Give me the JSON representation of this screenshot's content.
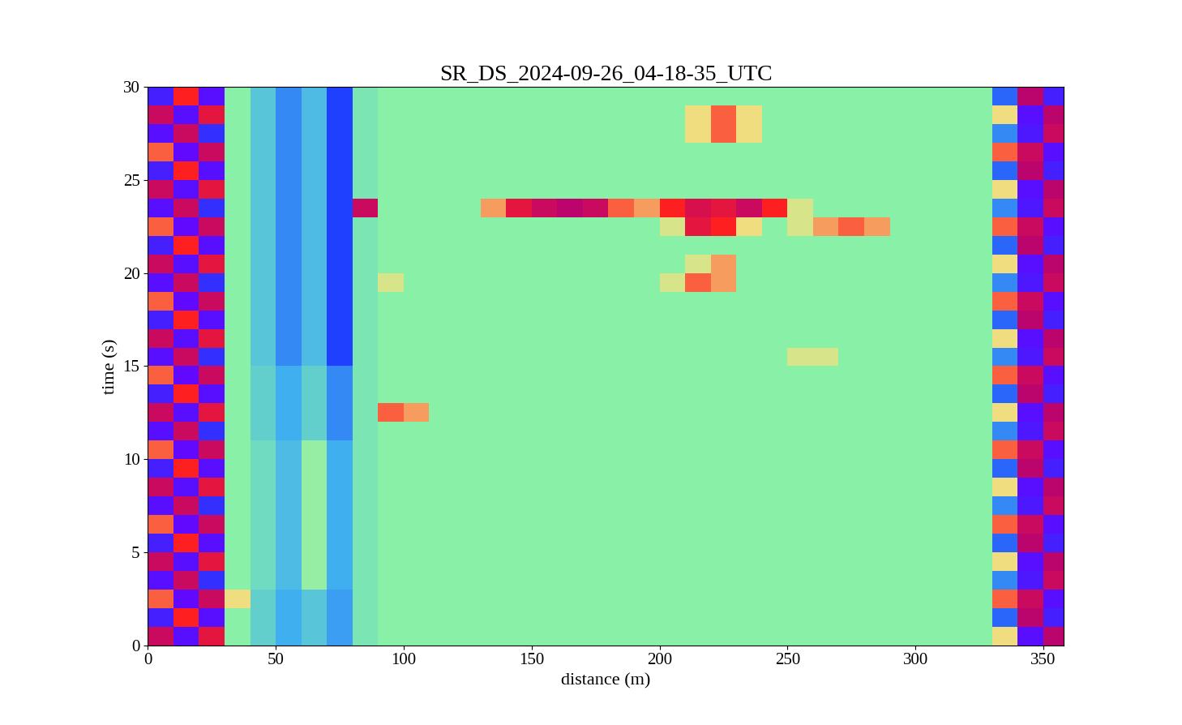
{
  "chart_data": {
    "type": "heatmap",
    "title": "SR_DS_2024-09-26_04-18-35_UTC",
    "x_label": "distance (m)",
    "y_label": "time (s)",
    "xlim": [
      0,
      358
    ],
    "ylim": [
      0,
      30
    ],
    "xticks": [
      0,
      50,
      100,
      150,
      200,
      250,
      300,
      350
    ],
    "yticks": [
      0,
      5,
      10,
      15,
      20,
      25,
      30
    ],
    "color_range": [
      -1,
      1
    ],
    "x_edges": [
      0,
      10,
      20,
      30,
      40,
      50,
      60,
      70,
      80,
      90,
      100,
      110,
      120,
      130,
      140,
      150,
      160,
      170,
      180,
      190,
      200,
      210,
      220,
      230,
      240,
      250,
      260,
      270,
      280,
      290,
      300,
      310,
      320,
      330,
      340,
      350,
      360
    ],
    "y_edges": [
      0,
      1,
      2,
      3,
      4,
      5,
      6,
      7,
      8,
      9,
      10,
      11,
      12,
      13,
      14,
      15,
      16,
      17,
      18,
      19,
      20,
      21,
      22,
      23,
      24,
      25,
      26,
      27,
      28,
      29,
      30
    ],
    "cells": [
      [
        0.9,
        -0.9,
        0.8,
        0,
        -0.15,
        -0.3,
        -0.2,
        -0.35,
        -0.05,
        0,
        0,
        0,
        0,
        0,
        0,
        0,
        0,
        0,
        0,
        0,
        0,
        0,
        0,
        0,
        0,
        0,
        0,
        0,
        0,
        0,
        0,
        0,
        0,
        0.4,
        -0.9,
        0.95
      ],
      [
        -0.8,
        0.7,
        -0.9,
        0,
        -0.15,
        -0.3,
        -0.2,
        -0.35,
        -0.05,
        0,
        0,
        0,
        0,
        0,
        0,
        0,
        0,
        0,
        0,
        0,
        0,
        0,
        0,
        0,
        0,
        0,
        0,
        0,
        0,
        0,
        0,
        0,
        0,
        -0.5,
        0.95,
        -0.8
      ],
      [
        0.6,
        -0.95,
        0.9,
        0.4,
        -0.15,
        -0.3,
        -0.2,
        -0.35,
        -0.05,
        0,
        0,
        0,
        0,
        0,
        0,
        0,
        0,
        0,
        0,
        0,
        0,
        0,
        0,
        0,
        0,
        0,
        0,
        0,
        0,
        0,
        0,
        0,
        0,
        0.6,
        0.9,
        -0.9
      ],
      [
        -0.9,
        0.9,
        -0.7,
        0,
        -0.1,
        -0.25,
        0.05,
        -0.3,
        -0.05,
        0,
        0,
        0,
        0,
        0,
        0,
        0,
        0,
        0,
        0,
        0,
        0,
        0,
        0,
        0,
        0,
        0,
        0,
        0,
        0,
        0,
        0,
        0,
        0,
        -0.4,
        -0.85,
        0.9
      ],
      [
        0.9,
        -0.9,
        0.8,
        0,
        -0.1,
        -0.25,
        0.05,
        -0.3,
        -0.05,
        0,
        0,
        0,
        0,
        0,
        0,
        0,
        0,
        0,
        0,
        0,
        0,
        0,
        0,
        0,
        0,
        0,
        0,
        0,
        0,
        0,
        0,
        0,
        0,
        0.4,
        -0.9,
        0.95
      ],
      [
        -0.8,
        0.7,
        -0.9,
        0,
        -0.1,
        -0.25,
        0.05,
        -0.3,
        -0.05,
        0,
        0,
        0,
        0,
        0,
        0,
        0,
        0,
        0,
        0,
        0,
        0,
        0,
        0,
        0,
        0,
        0,
        0,
        0,
        0,
        0,
        0,
        0,
        0,
        -0.5,
        0.95,
        -0.8
      ],
      [
        0.6,
        -0.95,
        0.9,
        0,
        -0.1,
        -0.25,
        0.05,
        -0.3,
        -0.05,
        0,
        0,
        0,
        0,
        0,
        0,
        0,
        0,
        0,
        0,
        0,
        0,
        0,
        0,
        0,
        0,
        0,
        0,
        0,
        0,
        0,
        0,
        0,
        0,
        0.6,
        0.9,
        -0.9
      ],
      [
        -0.9,
        0.9,
        -0.7,
        0,
        -0.1,
        -0.25,
        0.05,
        -0.3,
        -0.05,
        0,
        0,
        0,
        0,
        0,
        0,
        0,
        0,
        0,
        0,
        0,
        0,
        0,
        0,
        0,
        0,
        0,
        0,
        0,
        0,
        0,
        0,
        0,
        0,
        -0.4,
        -0.85,
        0.9
      ],
      [
        0.9,
        -0.9,
        0.8,
        0,
        -0.1,
        -0.25,
        0.05,
        -0.3,
        -0.05,
        0,
        0,
        0,
        0,
        0,
        0,
        0,
        0,
        0,
        0,
        0,
        0,
        0,
        0,
        0,
        0,
        0,
        0,
        0,
        0,
        0,
        0,
        0,
        0,
        0.4,
        -0.9,
        0.95
      ],
      [
        -0.8,
        0.7,
        -0.9,
        0,
        -0.1,
        -0.25,
        0.05,
        -0.3,
        -0.05,
        0,
        0,
        0,
        0,
        0,
        0,
        0,
        0,
        0,
        0,
        0,
        0,
        0,
        0,
        0,
        0,
        0,
        0,
        0,
        0,
        0,
        0,
        0,
        0,
        -0.5,
        0.95,
        -0.8
      ],
      [
        0.6,
        -0.95,
        0.9,
        0,
        -0.1,
        -0.25,
        0.05,
        -0.3,
        -0.05,
        0,
        0,
        0,
        0,
        0,
        0,
        0,
        0,
        0,
        0,
        0,
        0,
        0,
        0,
        0,
        0,
        0,
        0,
        0,
        0,
        0,
        0,
        0,
        0,
        0.6,
        0.9,
        -0.9
      ],
      [
        -0.9,
        0.9,
        -0.7,
        0,
        -0.15,
        -0.3,
        -0.15,
        -0.4,
        -0.05,
        0,
        0,
        0,
        0,
        0,
        0,
        0,
        0,
        0,
        0,
        0,
        0,
        0,
        0,
        0,
        0,
        0,
        0,
        0,
        0,
        0,
        0,
        0,
        0,
        -0.4,
        -0.85,
        0.9
      ],
      [
        0.9,
        -0.9,
        0.8,
        0,
        -0.15,
        -0.3,
        -0.15,
        -0.4,
        -0.05,
        0.6,
        0.5,
        0,
        0,
        0,
        0,
        0,
        0,
        0,
        0,
        0,
        0,
        0,
        0,
        0,
        0,
        0,
        0,
        0,
        0,
        0,
        0,
        0,
        0,
        0.4,
        -0.9,
        0.95
      ],
      [
        -0.8,
        0.7,
        -0.9,
        0,
        -0.15,
        -0.3,
        -0.15,
        -0.4,
        -0.05,
        0,
        0,
        0,
        0,
        0,
        0,
        0,
        0,
        0,
        0,
        0,
        0,
        0,
        0,
        0,
        0,
        0,
        0,
        0,
        0,
        0,
        0,
        0,
        0,
        -0.5,
        0.95,
        -0.8
      ],
      [
        0.6,
        -0.95,
        0.9,
        0,
        -0.15,
        -0.3,
        -0.15,
        -0.4,
        -0.05,
        0,
        0,
        0,
        0,
        0,
        0,
        0,
        0,
        0,
        0,
        0,
        0,
        0,
        0,
        0,
        0,
        0,
        0,
        0,
        0,
        0,
        0,
        0,
        0,
        0.6,
        0.9,
        -0.9
      ],
      [
        -0.9,
        0.9,
        -0.7,
        0,
        -0.2,
        -0.4,
        -0.25,
        -0.6,
        -0.05,
        0,
        0,
        0,
        0,
        0,
        0,
        0,
        0,
        0,
        0,
        0,
        0,
        0,
        0,
        0,
        0,
        0.3,
        0.3,
        0,
        0,
        0,
        0,
        0,
        0,
        -0.4,
        -0.85,
        0.9
      ],
      [
        0.9,
        -0.9,
        0.8,
        0,
        -0.2,
        -0.4,
        -0.25,
        -0.6,
        -0.05,
        0,
        0,
        0,
        0,
        0,
        0,
        0,
        0,
        0,
        0,
        0,
        0,
        0,
        0,
        0,
        0,
        0,
        0,
        0,
        0,
        0,
        0,
        0,
        0,
        0.4,
        -0.9,
        0.95
      ],
      [
        -0.8,
        0.7,
        -0.9,
        0,
        -0.2,
        -0.4,
        -0.25,
        -0.6,
        -0.05,
        0,
        0,
        0,
        0,
        0,
        0,
        0,
        0,
        0,
        0,
        0,
        0,
        0,
        0,
        0,
        0,
        0,
        0,
        0,
        0,
        0,
        0,
        0,
        0,
        -0.5,
        0.95,
        -0.8
      ],
      [
        0.6,
        -0.95,
        0.9,
        0,
        -0.2,
        -0.4,
        -0.25,
        -0.6,
        -0.05,
        0,
        0,
        0,
        0,
        0,
        0,
        0,
        0,
        0,
        0,
        0,
        0,
        0,
        0,
        0,
        0,
        0,
        0,
        0,
        0,
        0,
        0,
        0,
        0,
        0.6,
        0.9,
        -0.9
      ],
      [
        -0.9,
        0.9,
        -0.7,
        0,
        -0.2,
        -0.4,
        -0.25,
        -0.6,
        -0.05,
        0.3,
        0,
        0,
        0,
        0,
        0,
        0,
        0,
        0,
        0,
        0,
        0.3,
        0.6,
        0.5,
        0,
        0,
        0,
        0,
        0,
        0,
        0,
        0,
        0,
        0,
        -0.4,
        -0.85,
        0.9
      ],
      [
        0.9,
        -0.9,
        0.8,
        0,
        -0.2,
        -0.4,
        -0.25,
        -0.6,
        -0.05,
        0,
        0,
        0,
        0,
        0,
        0,
        0,
        0,
        0,
        0,
        0,
        0,
        0.3,
        0.5,
        0,
        0,
        0,
        0,
        0,
        0,
        0,
        0,
        0,
        0,
        0.4,
        -0.9,
        0.95
      ],
      [
        -0.8,
        0.7,
        -0.9,
        0,
        -0.2,
        -0.4,
        -0.25,
        -0.6,
        -0.05,
        0,
        0,
        0,
        0,
        0,
        0,
        0,
        0,
        0,
        0,
        0,
        0,
        0,
        0,
        0,
        0,
        0,
        0,
        0,
        0,
        0,
        0,
        0,
        0,
        -0.5,
        0.95,
        -0.8
      ],
      [
        0.6,
        -0.95,
        0.9,
        0,
        -0.2,
        -0.4,
        -0.25,
        -0.6,
        -0.05,
        0,
        0,
        0,
        0,
        0,
        0,
        0,
        0,
        0,
        0,
        0,
        0.3,
        0.8,
        0.7,
        0.4,
        0,
        0.3,
        0.5,
        0.6,
        0.5,
        0,
        0,
        0,
        0,
        0.6,
        0.9,
        -0.9
      ],
      [
        -0.9,
        0.9,
        -0.7,
        0,
        -0.2,
        -0.4,
        -0.25,
        -0.6,
        0.9,
        0,
        0,
        0,
        0,
        0.5,
        0.8,
        0.9,
        0.95,
        0.9,
        0.6,
        0.5,
        0.7,
        0.85,
        0.8,
        0.9,
        0.7,
        0.3,
        0,
        0,
        0,
        0,
        0,
        0,
        0,
        -0.4,
        -0.85,
        0.9
      ],
      [
        0.9,
        -0.9,
        0.8,
        0,
        -0.2,
        -0.4,
        -0.25,
        -0.6,
        -0.05,
        0,
        0,
        0,
        0,
        0,
        0,
        0,
        0,
        0,
        0,
        0,
        0,
        0,
        0,
        0,
        0,
        0,
        0,
        0,
        0,
        0,
        0,
        0,
        0,
        0.4,
        -0.9,
        0.95
      ],
      [
        -0.8,
        0.7,
        -0.9,
        0,
        -0.2,
        -0.4,
        -0.25,
        -0.6,
        -0.05,
        0,
        0,
        0,
        0,
        0,
        0,
        0,
        0,
        0,
        0,
        0,
        0,
        0,
        0,
        0,
        0,
        0,
        0,
        0,
        0,
        0,
        0,
        0,
        0,
        -0.5,
        0.95,
        -0.8
      ],
      [
        0.6,
        -0.95,
        0.9,
        0,
        -0.2,
        -0.4,
        -0.25,
        -0.6,
        -0.05,
        0,
        0,
        0,
        0,
        0,
        0,
        0,
        0,
        0,
        0,
        0,
        0,
        0,
        0,
        0,
        0,
        0,
        0,
        0,
        0,
        0,
        0,
        0,
        0,
        0.6,
        0.9,
        -0.9
      ],
      [
        -0.9,
        0.9,
        -0.7,
        0,
        -0.2,
        -0.4,
        -0.25,
        -0.6,
        -0.05,
        0,
        0,
        0,
        0,
        0,
        0,
        0,
        0,
        0,
        0,
        0,
        0,
        0.4,
        0.6,
        0.4,
        0,
        0,
        0,
        0,
        0,
        0,
        0,
        0,
        0,
        -0.4,
        -0.85,
        0.9
      ],
      [
        0.9,
        -0.9,
        0.8,
        0,
        -0.2,
        -0.4,
        -0.25,
        -0.6,
        -0.05,
        0,
        0,
        0,
        0,
        0,
        0,
        0,
        0,
        0,
        0,
        0,
        0,
        0.4,
        0.6,
        0.4,
        0,
        0,
        0,
        0,
        0,
        0,
        0,
        0,
        0,
        0.4,
        -0.9,
        0.95
      ],
      [
        -0.8,
        0.7,
        -0.9,
        0,
        -0.2,
        -0.4,
        -0.25,
        -0.6,
        -0.05,
        0,
        0,
        0,
        0,
        0,
        0,
        0,
        0,
        0,
        0,
        0,
        0,
        0,
        0,
        0,
        0,
        0,
        0,
        0,
        0,
        0,
        0,
        0,
        0,
        -0.5,
        0.95,
        -0.8
      ]
    ]
  }
}
